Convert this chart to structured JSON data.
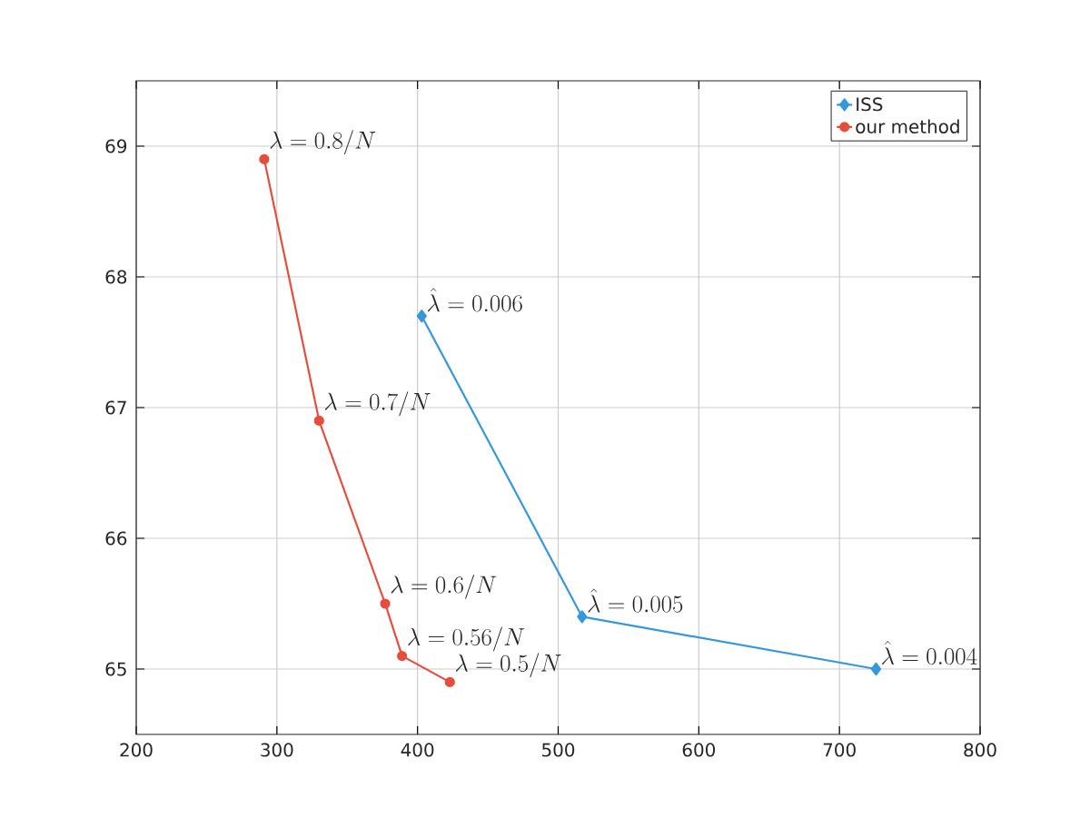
{
  "chart_data": {
    "type": "line",
    "series": [
      {
        "name": "ISS",
        "color": "#3498db",
        "marker": "diamond",
        "x": [
          403,
          517,
          726
        ],
        "values": [
          67.7,
          65.4,
          65.0
        ]
      },
      {
        "name": "our method",
        "color": "#e74c3c",
        "marker": "circle",
        "x": [
          291,
          330,
          377,
          389,
          423
        ],
        "values": [
          68.9,
          66.9,
          65.5,
          65.1,
          64.9
        ]
      }
    ],
    "annotations": [
      {
        "text": "\\hat{\\lambda}=0.006",
        "x": 403,
        "y": 67.7
      },
      {
        "text": "\\hat{\\lambda}=0.005",
        "x": 517,
        "y": 65.4
      },
      {
        "text": "\\hat{\\lambda}=0.004",
        "x": 726,
        "y": 65.0
      },
      {
        "text": "\\lambda=0.8/N",
        "x": 291,
        "y": 68.9
      },
      {
        "text": "\\lambda=0.7/N",
        "x": 330,
        "y": 66.9
      },
      {
        "text": "\\lambda=0.6/N",
        "x": 377,
        "y": 65.5
      },
      {
        "text": "\\lambda=0.56/N",
        "x": 389,
        "y": 65.1
      },
      {
        "text": "\\lambda=0.5/N",
        "x": 423,
        "y": 64.9
      }
    ],
    "xlim": [
      200,
      800
    ],
    "ylim": [
      64.5,
      69.5
    ],
    "xticks": [
      200,
      300,
      400,
      500,
      600,
      700,
      800
    ],
    "yticks": [
      65,
      66,
      67,
      68,
      69
    ],
    "grid": true,
    "legend": "top right",
    "line_style": "solid"
  }
}
